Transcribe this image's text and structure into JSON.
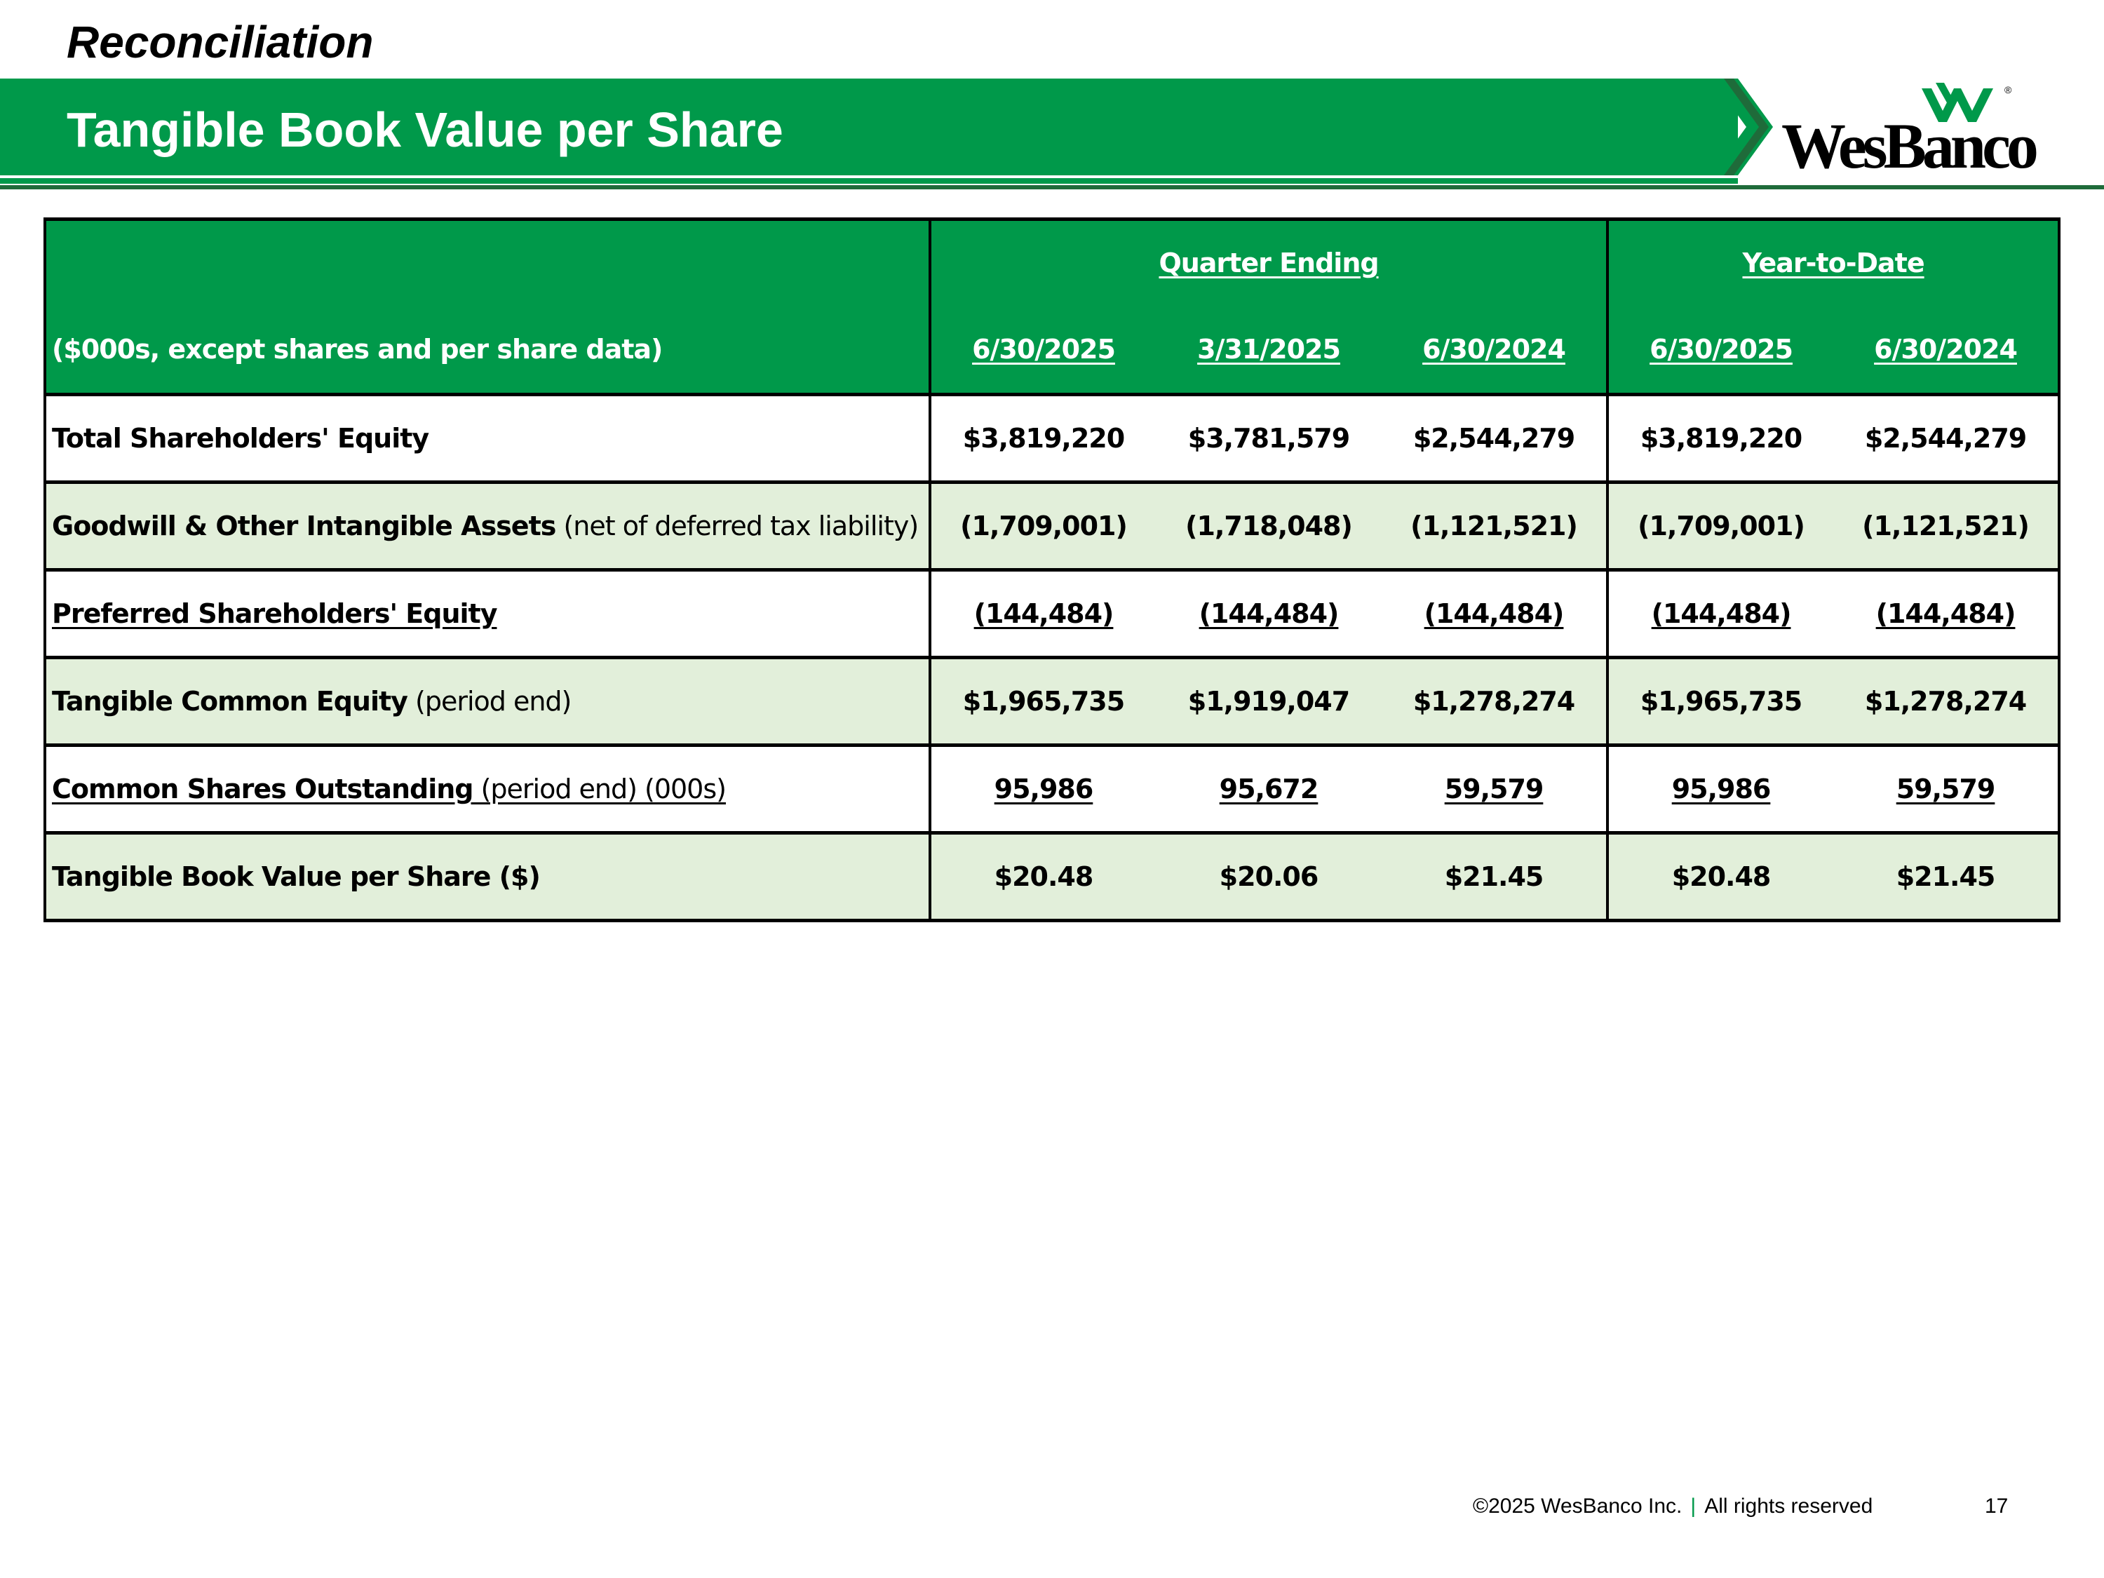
{
  "header": {
    "kicker": "Reconciliation",
    "title": "Tangible Book Value per Share",
    "logo_text": "WesBanco",
    "logo_reg": "®"
  },
  "colors": {
    "brand_green": "#00994a",
    "dark_green": "#1f6b3a",
    "row_alt": "#e2efda"
  },
  "table": {
    "unit_label": "($000s, except shares and per share data)",
    "groups": [
      "Quarter Ending",
      "Year-to-Date"
    ],
    "columns": [
      "6/30/2025",
      "3/31/2025",
      "6/30/2024",
      "6/30/2025",
      "6/30/2024"
    ],
    "rows": [
      {
        "label_bold": "Total Shareholders' Equity",
        "label_plain": "",
        "values": [
          "$3,819,220",
          "$3,781,579",
          "$2,544,279",
          "$3,819,220",
          "$2,544,279"
        ]
      },
      {
        "label_bold": "Goodwill & Other Intangible Assets",
        "label_plain": " (net of deferred tax liability)",
        "values": [
          "(1,709,001)",
          "(1,718,048)",
          "(1,121,521)",
          "(1,709,001)",
          "(1,121,521)"
        ]
      },
      {
        "label_bold": "Preferred Shareholders' Equity",
        "label_plain": "",
        "values": [
          "(144,484)",
          "(144,484)",
          "(144,484)",
          "(144,484)",
          "(144,484)"
        ]
      },
      {
        "label_bold": "Tangible Common Equity",
        "label_plain": " (period end)",
        "values": [
          "$1,965,735",
          "$1,919,047",
          "$1,278,274",
          "$1,965,735",
          "$1,278,274"
        ]
      },
      {
        "label_bold": "Common Shares Outstanding",
        "label_plain": " (period end) (000s)",
        "values": [
          "95,986",
          "95,672",
          "59,579",
          "95,986",
          "59,579"
        ]
      },
      {
        "label_bold": "Tangible Book Value per Share ($)",
        "label_plain": "",
        "values": [
          "$20.48",
          "$20.06",
          "$21.45",
          "$20.48",
          "$21.45"
        ]
      }
    ]
  },
  "footer": {
    "copyright": "©2025 WesBanco Inc.",
    "separator": "|",
    "rights": "All rights reserved",
    "page_number": "17"
  }
}
